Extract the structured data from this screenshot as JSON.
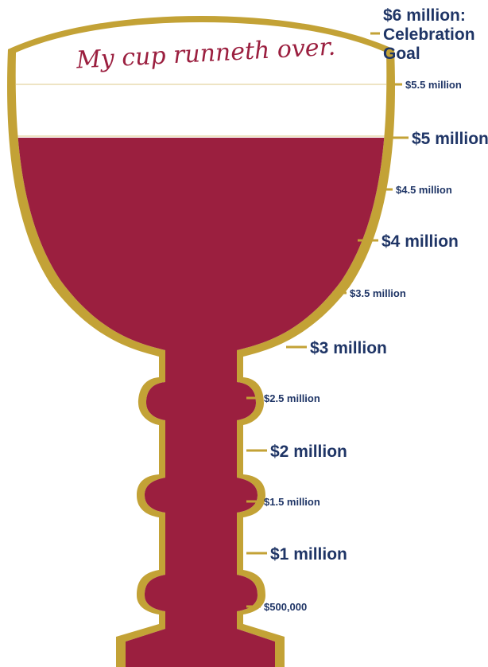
{
  "colors": {
    "wine": "#9b1f3f",
    "gold": "#c3a236",
    "label": "#1f3566",
    "guide": "#e8dcb0"
  },
  "slogan": "My cup runneth over.",
  "chart_data": {
    "type": "progress-thermometer",
    "unit": "USD",
    "goal": 6000000,
    "current": 5000000,
    "goal_label_lines": [
      "$6 million:",
      "Celebration",
      "Goal"
    ],
    "ticks": [
      {
        "value": 500000,
        "label": "$500,000",
        "major": false
      },
      {
        "value": 1000000,
        "label": "$1 million",
        "major": true
      },
      {
        "value": 1500000,
        "label": "$1.5 million",
        "major": false
      },
      {
        "value": 2000000,
        "label": "$2 million",
        "major": true
      },
      {
        "value": 2500000,
        "label": "$2.5 million",
        "major": false
      },
      {
        "value": 3000000,
        "label": "$3 million",
        "major": true
      },
      {
        "value": 3500000,
        "label": "$3.5 million",
        "major": false
      },
      {
        "value": 4000000,
        "label": "$4 million",
        "major": true
      },
      {
        "value": 4500000,
        "label": "$4.5 million",
        "major": false
      },
      {
        "value": 5000000,
        "label": "$5 million",
        "major": true
      },
      {
        "value": 5500000,
        "label": "$5.5 million",
        "major": false
      }
    ]
  }
}
